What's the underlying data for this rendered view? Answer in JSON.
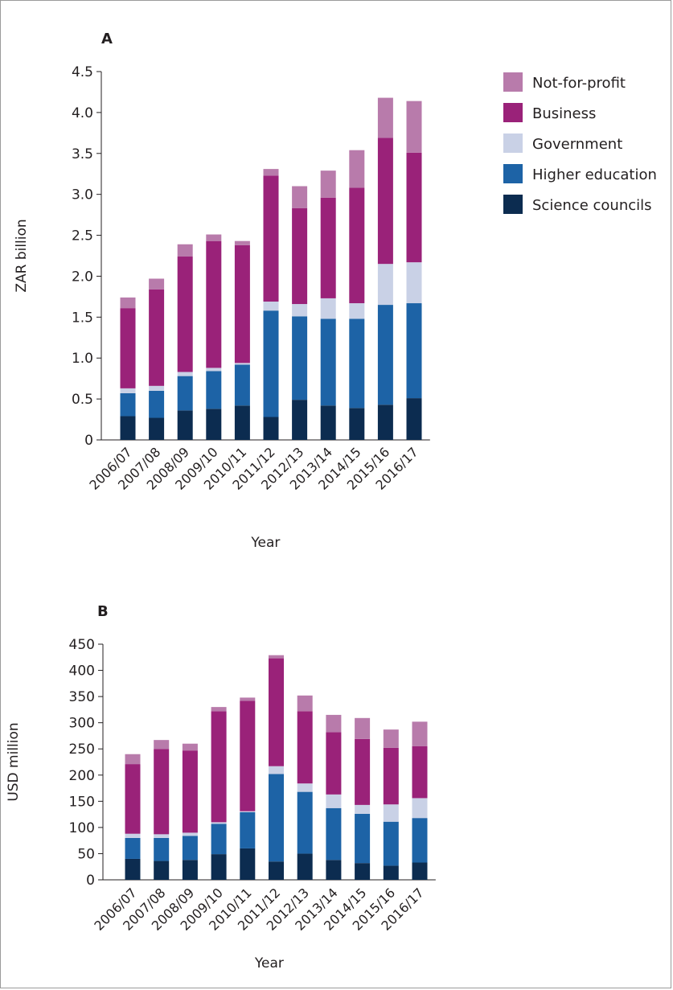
{
  "legend": [
    {
      "name": "Not-for-profit",
      "color": "#b87bab"
    },
    {
      "name": "Business",
      "color": "#9a2279"
    },
    {
      "name": "Government",
      "color": "#c9d1e6"
    },
    {
      "name": "Higher education",
      "color": "#1d63a6"
    },
    {
      "name": "Science councils",
      "color": "#0c2c50"
    }
  ],
  "chart_data": [
    {
      "type": "bar",
      "stacked": true,
      "panel_label": "A",
      "xlabel": "Year",
      "ylabel": "ZAR billion",
      "ylim": [
        0,
        4.5
      ],
      "yticks": [
        "0",
        "0.5",
        "1.0",
        "1.5",
        "2.0",
        "2.5",
        "3.0",
        "3.5",
        "4.0",
        "4.5"
      ],
      "ytick_values": [
        0,
        0.5,
        1.0,
        1.5,
        2.0,
        2.5,
        3.0,
        3.5,
        4.0,
        4.5
      ],
      "categories": [
        "2006/07",
        "2007/08",
        "2008/09",
        "2009/10",
        "2010/11",
        "2011/12",
        "2012/13",
        "2013/14",
        "2014/15",
        "2015/16",
        "2016/17"
      ],
      "series": [
        {
          "name": "Science councils",
          "color": "#0c2c50",
          "values": [
            0.29,
            0.27,
            0.36,
            0.38,
            0.42,
            0.28,
            0.49,
            0.42,
            0.39,
            0.43,
            0.51
          ]
        },
        {
          "name": "Higher education",
          "color": "#1d63a6",
          "values": [
            0.28,
            0.33,
            0.42,
            0.46,
            0.5,
            1.3,
            1.02,
            1.06,
            1.09,
            1.22,
            1.16
          ]
        },
        {
          "name": "Government",
          "color": "#c9d1e6",
          "values": [
            0.06,
            0.06,
            0.05,
            0.04,
            0.02,
            0.11,
            0.15,
            0.25,
            0.19,
            0.5,
            0.5
          ]
        },
        {
          "name": "Business",
          "color": "#9a2279",
          "values": [
            0.98,
            1.18,
            1.41,
            1.55,
            1.44,
            1.54,
            1.17,
            1.23,
            1.41,
            1.54,
            1.34
          ]
        },
        {
          "name": "Not-for-profit",
          "color": "#b87bab",
          "values": [
            0.13,
            0.13,
            0.15,
            0.08,
            0.05,
            0.08,
            0.27,
            0.33,
            0.46,
            0.49,
            0.63
          ]
        }
      ]
    },
    {
      "type": "bar",
      "stacked": true,
      "panel_label": "B",
      "xlabel": "Year",
      "ylabel": "USD million",
      "ylim": [
        0,
        450
      ],
      "yticks": [
        "0",
        "50",
        "100",
        "150",
        "200",
        "250",
        "300",
        "350",
        "400",
        "450"
      ],
      "ytick_values": [
        0,
        50,
        100,
        150,
        200,
        250,
        300,
        350,
        400,
        450
      ],
      "categories": [
        "2006/07",
        "2007/08",
        "2008/09",
        "2009/10",
        "2010/11",
        "2011/12",
        "2012/13",
        "2013/14",
        "2014/15",
        "2015/16",
        "2016/17"
      ],
      "series": [
        {
          "name": "Science councils",
          "color": "#0c2c50",
          "values": [
            40,
            36,
            38,
            49,
            60,
            35,
            50,
            38,
            32,
            27,
            33
          ]
        },
        {
          "name": "Higher education",
          "color": "#1d63a6",
          "values": [
            40,
            44,
            46,
            58,
            69,
            167,
            118,
            99,
            94,
            84,
            85
          ]
        },
        {
          "name": "Government",
          "color": "#c9d1e6",
          "values": [
            8,
            7,
            6,
            3,
            2,
            15,
            16,
            26,
            17,
            33,
            38
          ]
        },
        {
          "name": "Business",
          "color": "#9a2279",
          "values": [
            133,
            163,
            157,
            212,
            211,
            206,
            138,
            119,
            126,
            108,
            99
          ]
        },
        {
          "name": "Not-for-profit",
          "color": "#b87bab",
          "values": [
            19,
            17,
            13,
            8,
            6,
            6,
            30,
            33,
            40,
            35,
            47
          ]
        }
      ]
    }
  ]
}
